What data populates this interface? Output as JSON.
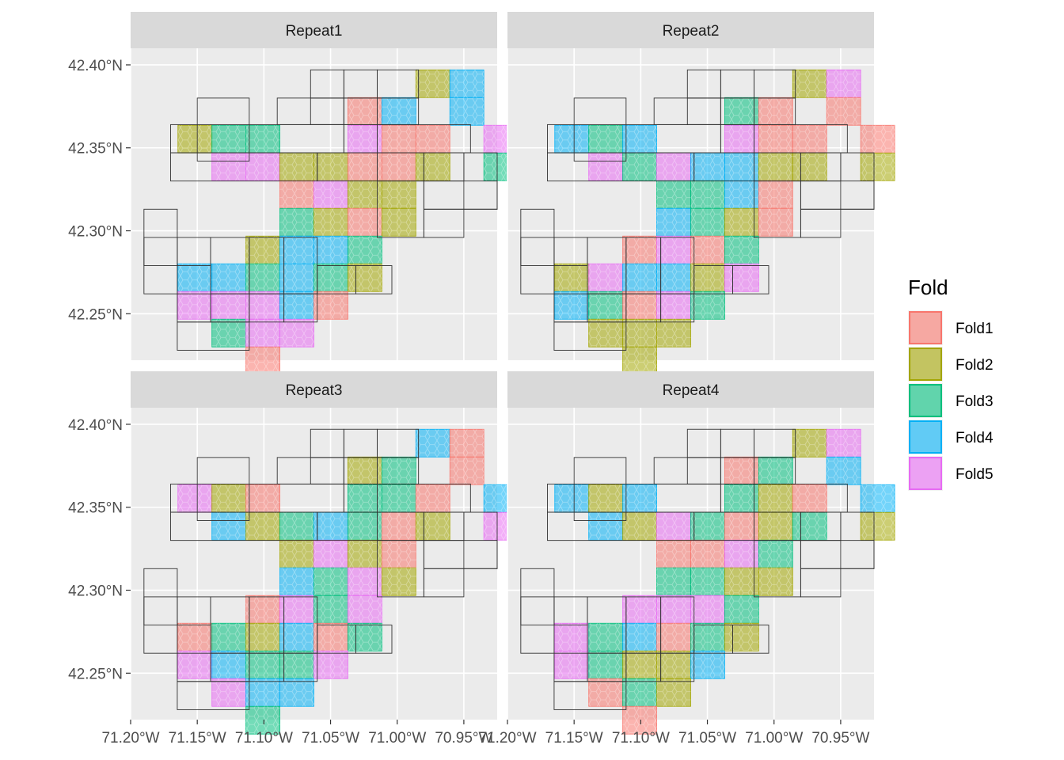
{
  "chart_data": {
    "type": "map",
    "title": "",
    "xlabel": "",
    "ylabel": "",
    "xlim": [
      -71.2,
      -70.925
    ],
    "ylim": [
      42.222,
      42.41
    ],
    "x_ticks": [
      {
        "value": -71.2,
        "label": "71.20°W"
      },
      {
        "value": -71.15,
        "label": "71.15°W"
      },
      {
        "value": -71.1,
        "label": "71.10°W"
      },
      {
        "value": -71.05,
        "label": "71.05°W"
      },
      {
        "value": -71.0,
        "label": "71.00°W"
      },
      {
        "value": -70.95,
        "label": "70.95°W"
      }
    ],
    "y_ticks": [
      {
        "value": 42.4,
        "label": "42.40°N"
      },
      {
        "value": 42.35,
        "label": "42.35°N"
      },
      {
        "value": 42.3,
        "label": "42.30°N"
      },
      {
        "value": 42.25,
        "label": "42.25°N"
      }
    ],
    "legend": {
      "title": "Fold",
      "placement": "right",
      "entries": [
        {
          "label": "Fold1",
          "fill": "#F8766D"
        },
        {
          "label": "Fold2",
          "fill": "#A3A500"
        },
        {
          "label": "Fold3",
          "fill": "#00BF7D"
        },
        {
          "label": "Fold4",
          "fill": "#00B0F6"
        },
        {
          "label": "Fold5",
          "fill": "#E76BF3"
        }
      ]
    },
    "colors": {
      "panel_bg": "#EBEBEB",
      "grid": "#FFFFFF",
      "strip_bg": "#D9D9D9",
      "block_outline": "#333333"
    },
    "blocks": [
      [
        -71.15,
        -71.111,
        42.342,
        42.38
      ],
      [
        -71.17,
        -71.04,
        42.347,
        42.364
      ],
      [
        -71.17,
        -71.06,
        42.33,
        42.347
      ],
      [
        -71.09,
        -71.04,
        42.364,
        42.38
      ],
      [
        -71.065,
        -71.04,
        42.38,
        42.397
      ],
      [
        -71.04,
        -71.015,
        42.38,
        42.397
      ],
      [
        -71.015,
        -70.984,
        42.38,
        42.397
      ],
      [
        -71.065,
        -71.04,
        42.364,
        42.38
      ],
      [
        -71.04,
        -71.015,
        42.364,
        42.38
      ],
      [
        -71.015,
        -70.984,
        42.364,
        42.38
      ],
      [
        -71.04,
        -71.015,
        42.347,
        42.364
      ],
      [
        -71.015,
        -70.945,
        42.347,
        42.364
      ],
      [
        -71.06,
        -71.015,
        42.33,
        42.347
      ],
      [
        -71.015,
        -70.98,
        42.33,
        42.347
      ],
      [
        -70.98,
        -70.95,
        42.33,
        42.347
      ],
      [
        -70.95,
        -70.925,
        42.313,
        42.347
      ],
      [
        -70.98,
        -70.925,
        42.313,
        42.33
      ],
      [
        -71.015,
        -70.98,
        42.296,
        42.33
      ],
      [
        -70.98,
        -70.95,
        42.296,
        42.313
      ],
      [
        -71.19,
        -71.165,
        42.262,
        42.313
      ],
      [
        -71.19,
        -71.165,
        42.279,
        42.296
      ],
      [
        -71.165,
        -71.14,
        42.279,
        42.296
      ],
      [
        -71.14,
        -71.111,
        42.262,
        42.296
      ],
      [
        -71.111,
        -71.085,
        42.262,
        42.296
      ],
      [
        -71.085,
        -71.06,
        42.262,
        42.296
      ],
      [
        -71.06,
        -71.031,
        42.262,
        42.279
      ],
      [
        -71.031,
        -71.004,
        42.262,
        42.279
      ],
      [
        -71.165,
        -71.14,
        42.245,
        42.262
      ],
      [
        -71.14,
        -71.111,
        42.245,
        42.262
      ],
      [
        -71.111,
        -71.085,
        42.245,
        42.262
      ],
      [
        -71.085,
        -71.06,
        42.245,
        42.262
      ],
      [
        -71.165,
        -71.111,
        42.228,
        42.245
      ]
    ],
    "region_cells": [
      [
        0,
        0,
        0,
        0,
        0,
        0,
        0,
        0,
        1,
        1,
        0
      ],
      [
        0,
        0,
        0,
        0,
        0,
        0,
        1,
        1,
        0,
        1,
        0
      ],
      [
        0,
        1,
        1,
        1,
        0,
        0,
        1,
        1,
        1,
        0,
        1
      ],
      [
        0,
        0,
        1,
        1,
        1,
        1,
        1,
        1,
        1,
        0,
        1
      ],
      [
        0,
        0,
        0,
        0,
        1,
        1,
        1,
        1,
        0,
        0,
        0
      ],
      [
        0,
        0,
        0,
        0,
        1,
        1,
        1,
        1,
        0,
        0,
        0
      ],
      [
        0,
        0,
        0,
        1,
        1,
        1,
        1,
        0,
        0,
        0,
        0
      ],
      [
        0,
        1,
        1,
        1,
        1,
        1,
        1,
        0,
        0,
        0,
        0
      ],
      [
        0,
        1,
        1,
        1,
        1,
        1,
        0,
        0,
        0,
        0,
        0
      ],
      [
        0,
        0,
        1,
        1,
        1,
        0,
        0,
        0,
        0,
        0,
        0
      ],
      [
        0,
        0,
        0,
        1,
        0,
        0,
        0,
        0,
        0,
        0,
        0
      ]
    ],
    "grid_origin": {
      "lon": -71.19,
      "lat": 42.397,
      "dlon": 0.0255,
      "dlat": 0.0167
    },
    "series": [
      {
        "name": "Repeat1",
        "cells": [
          [
            0,
            0,
            0,
            0,
            0,
            0,
            0,
            0,
            2,
            4,
            0
          ],
          [
            0,
            0,
            0,
            0,
            0,
            0,
            1,
            4,
            0,
            4,
            0
          ],
          [
            0,
            2,
            3,
            3,
            0,
            0,
            5,
            1,
            1,
            0,
            5
          ],
          [
            0,
            0,
            5,
            5,
            2,
            2,
            1,
            1,
            2,
            0,
            3
          ],
          [
            0,
            0,
            0,
            0,
            1,
            5,
            2,
            2,
            0,
            0,
            0
          ],
          [
            0,
            0,
            0,
            0,
            3,
            2,
            1,
            2,
            0,
            0,
            0
          ],
          [
            0,
            0,
            0,
            2,
            4,
            4,
            3,
            0,
            0,
            0,
            0
          ],
          [
            0,
            4,
            4,
            3,
            4,
            3,
            2,
            0,
            0,
            0,
            0
          ],
          [
            0,
            5,
            5,
            5,
            4,
            1,
            0,
            0,
            0,
            0,
            0
          ],
          [
            0,
            0,
            3,
            5,
            5,
            0,
            0,
            0,
            0,
            0,
            0
          ],
          [
            0,
            0,
            0,
            1,
            0,
            0,
            0,
            0,
            0,
            0,
            0
          ]
        ]
      },
      {
        "name": "Repeat2",
        "cells": [
          [
            0,
            0,
            0,
            0,
            0,
            0,
            0,
            0,
            2,
            5,
            0
          ],
          [
            0,
            0,
            0,
            0,
            0,
            0,
            3,
            1,
            0,
            1,
            0
          ],
          [
            0,
            4,
            3,
            4,
            0,
            0,
            5,
            1,
            1,
            0,
            1
          ],
          [
            0,
            0,
            5,
            3,
            5,
            4,
            4,
            2,
            2,
            0,
            2
          ],
          [
            0,
            0,
            0,
            0,
            3,
            3,
            4,
            1,
            0,
            0,
            0
          ],
          [
            0,
            0,
            0,
            0,
            4,
            3,
            2,
            1,
            0,
            0,
            0
          ],
          [
            0,
            0,
            0,
            1,
            5,
            1,
            3,
            0,
            0,
            0,
            0
          ],
          [
            0,
            2,
            5,
            4,
            4,
            2,
            5,
            0,
            0,
            0,
            0
          ],
          [
            0,
            4,
            3,
            1,
            5,
            3,
            0,
            0,
            0,
            0,
            0
          ],
          [
            0,
            0,
            2,
            2,
            2,
            0,
            0,
            0,
            0,
            0,
            0
          ],
          [
            0,
            0,
            0,
            2,
            0,
            0,
            0,
            0,
            0,
            0,
            0
          ]
        ]
      },
      {
        "name": "Repeat3",
        "cells": [
          [
            0,
            0,
            0,
            0,
            0,
            0,
            0,
            0,
            4,
            1,
            0
          ],
          [
            0,
            0,
            0,
            0,
            0,
            0,
            2,
            3,
            0,
            1,
            0
          ],
          [
            0,
            5,
            2,
            1,
            0,
            0,
            3,
            3,
            1,
            0,
            4
          ],
          [
            0,
            0,
            4,
            2,
            3,
            4,
            3,
            1,
            2,
            0,
            5
          ],
          [
            0,
            0,
            0,
            0,
            2,
            5,
            2,
            1,
            0,
            0,
            0
          ],
          [
            0,
            0,
            0,
            0,
            4,
            3,
            5,
            2,
            0,
            0,
            0
          ],
          [
            0,
            0,
            0,
            1,
            5,
            3,
            5,
            0,
            0,
            0,
            0
          ],
          [
            0,
            1,
            3,
            2,
            4,
            1,
            3,
            0,
            0,
            0,
            0
          ],
          [
            0,
            5,
            4,
            3,
            3,
            5,
            0,
            0,
            0,
            0,
            0
          ],
          [
            0,
            0,
            5,
            4,
            4,
            0,
            0,
            0,
            0,
            0,
            0
          ],
          [
            0,
            0,
            0,
            3,
            0,
            0,
            0,
            0,
            0,
            0,
            0
          ]
        ]
      },
      {
        "name": "Repeat4",
        "cells": [
          [
            0,
            0,
            0,
            0,
            0,
            0,
            0,
            0,
            2,
            5,
            0
          ],
          [
            0,
            0,
            0,
            0,
            0,
            0,
            1,
            3,
            0,
            4,
            0
          ],
          [
            0,
            4,
            2,
            4,
            0,
            0,
            3,
            2,
            1,
            0,
            4
          ],
          [
            0,
            0,
            4,
            2,
            5,
            3,
            1,
            2,
            3,
            0,
            2
          ],
          [
            0,
            0,
            0,
            0,
            1,
            1,
            5,
            3,
            0,
            0,
            0
          ],
          [
            0,
            0,
            0,
            0,
            3,
            3,
            2,
            2,
            0,
            0,
            0
          ],
          [
            0,
            0,
            0,
            5,
            5,
            5,
            3,
            0,
            0,
            0,
            0
          ],
          [
            0,
            5,
            3,
            4,
            1,
            3,
            2,
            0,
            0,
            0,
            0
          ],
          [
            0,
            5,
            3,
            2,
            2,
            4,
            0,
            0,
            0,
            0,
            0
          ],
          [
            0,
            0,
            1,
            3,
            2,
            0,
            0,
            0,
            0,
            0,
            0
          ],
          [
            0,
            0,
            0,
            1,
            0,
            0,
            0,
            0,
            0,
            0,
            0
          ]
        ]
      }
    ]
  }
}
